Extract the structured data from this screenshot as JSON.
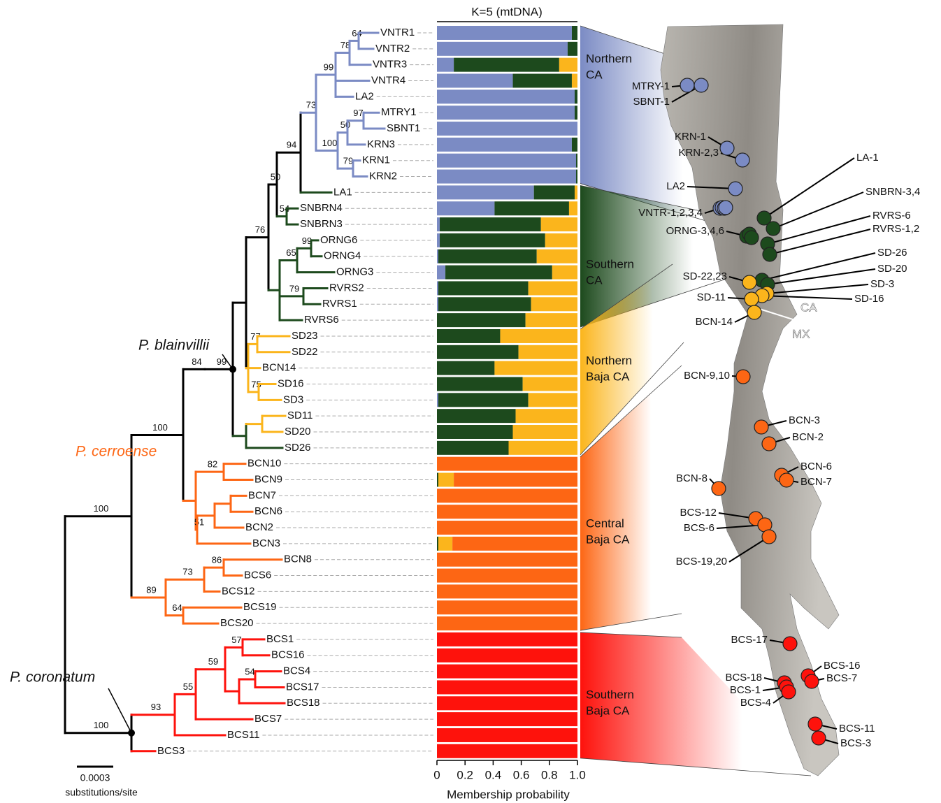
{
  "chart_data": {
    "type": "bar",
    "orientation": "horizontal",
    "stacked": true,
    "title": "K=5 (mtDNA)",
    "xlabel": "Membership probability",
    "categories": [
      "VNTR1",
      "VNTR2",
      "VNTR3",
      "VNTR4",
      "LA2",
      "MTRY1",
      "SBNT1",
      "KRN3",
      "KRN1",
      "KRN2",
      "LA1",
      "SNBRN4",
      "SNBRN3",
      "ORNG6",
      "ORNG4",
      "ORNG3",
      "RVRS2",
      "RVRS1",
      "RVRS6",
      "SD23",
      "SD22",
      "BCN14",
      "SD16",
      "SD3",
      "SD11",
      "SD20",
      "SD26",
      "BCN10",
      "BCN9",
      "BCN7",
      "BCN6",
      "BCN2",
      "BCN3",
      "BCN8",
      "BCS6",
      "BCS12",
      "BCS19",
      "BCS20",
      "BCS1",
      "BCS16",
      "BCS4",
      "BCS17",
      "BCS18",
      "BCS7",
      "BCS11",
      "BCS3"
    ],
    "series": [
      {
        "color": "#7b8bc4",
        "values": [
          0.96,
          0.93,
          0.12,
          0.54,
          0.98,
          0.98,
          1,
          0.96,
          0.99,
          0.99,
          0.69,
          0.41,
          0.02,
          0.02,
          0.01,
          0.06,
          0.01,
          0.01,
          0,
          0,
          0,
          0,
          0,
          0.01,
          0,
          0,
          0,
          0,
          0,
          0,
          0,
          0,
          0,
          0,
          0,
          0,
          0,
          0,
          0,
          0,
          0,
          0,
          0,
          0,
          0,
          0
        ]
      },
      {
        "color": "#1d4a1d",
        "values": [
          0.04,
          0.07,
          0.75,
          0.42,
          0.02,
          0.02,
          0,
          0.04,
          0.01,
          0.01,
          0.29,
          0.53,
          0.72,
          0.75,
          0.7,
          0.76,
          0.64,
          0.66,
          0.63,
          0.45,
          0.58,
          0.41,
          0.61,
          0.64,
          0.56,
          0.54,
          0.51,
          0,
          0.01,
          0,
          0,
          0,
          0.01,
          0,
          0,
          0,
          0,
          0,
          0,
          0,
          0,
          0,
          0,
          0,
          0,
          0
        ]
      },
      {
        "color": "#fbb51c",
        "values": [
          0,
          0,
          0.13,
          0.04,
          0,
          0,
          0,
          0,
          0,
          0,
          0.02,
          0.06,
          0.26,
          0.23,
          0.29,
          0.18,
          0.35,
          0.33,
          0.37,
          0.55,
          0.42,
          0.59,
          0.39,
          0.35,
          0.44,
          0.46,
          0.49,
          0,
          0.11,
          0,
          0,
          0,
          0.1,
          0,
          0,
          0,
          0,
          0,
          0,
          0,
          0,
          0,
          0,
          0,
          0,
          0
        ]
      },
      {
        "color": "#fd6614",
        "values": [
          0,
          0,
          0,
          0,
          0,
          0,
          0,
          0,
          0,
          0,
          0,
          0,
          0,
          0,
          0,
          0,
          0,
          0,
          0,
          0,
          0,
          0,
          0,
          0,
          0,
          0,
          0,
          1,
          0.88,
          1,
          1,
          1,
          0.89,
          1,
          1,
          1,
          1,
          1,
          0,
          0,
          0,
          0,
          0,
          0,
          0,
          0
        ]
      },
      {
        "color": "#fe120c",
        "values": [
          0,
          0,
          0,
          0,
          0,
          0,
          0,
          0,
          0,
          0,
          0,
          0,
          0,
          0,
          0,
          0,
          0,
          0,
          0,
          0,
          0,
          0,
          0,
          0,
          0,
          0,
          0,
          0,
          0,
          0,
          0,
          0,
          0,
          0,
          0,
          0,
          0,
          0,
          1,
          1,
          1,
          1,
          1,
          1,
          1,
          1
        ]
      }
    ],
    "xlim": [
      0,
      1
    ],
    "xticks": [
      0,
      0.2,
      0.4,
      0.6,
      0.8,
      {
        "value": 1,
        "label": "1.0"
      }
    ],
    "regions": [
      [
        "Northern",
        "CA"
      ],
      [
        "Southern",
        "CA"
      ],
      [
        "Northern",
        "Baja CA"
      ],
      [
        "Central",
        "Baja CA"
      ],
      [
        "Southern",
        "Baja CA"
      ]
    ]
  },
  "tree": {
    "support": [
      64,
      78,
      99,
      73,
      97,
      50,
      100,
      79,
      94,
      50,
      54,
      76,
      99,
      65,
      79,
      77,
      75,
      99,
      84,
      82,
      51,
      100,
      86,
      73,
      89,
      64,
      57,
      54,
      59,
      55,
      93,
      100,
      100
    ],
    "clade_labels": [
      "P. blainvillii",
      "P. cerroense",
      "P. coronatum"
    ],
    "scale": "0.0003",
    "scale_unit": "substitutions/site"
  },
  "map": {
    "sites": [
      "MTRY-1",
      "SBNT-1",
      "KRN-1",
      "KRN-2,3",
      "LA2",
      "VNTR-1,2,3,4",
      "ORNG-3,4,6",
      "LA-1",
      "SNBRN-3,4",
      "RVRS-6",
      "RVRS-1,2",
      "SD-26",
      "SD-20",
      "SD-3",
      "SD-16",
      "SD-22,23",
      "SD-11",
      "BCN-14",
      "BCN-9,10",
      "BCN-3",
      "BCN-2",
      "BCN-6",
      "BCN-7",
      "BCN-8",
      "BCS-12",
      "BCS-6",
      "BCS-19,20",
      "BCS-17",
      "BCS-16",
      "BCS-7",
      "BCS-18",
      "BCS-1",
      "BCS-4",
      "BCS-11",
      "BCS-3"
    ],
    "borders": [
      "CA",
      "MX"
    ]
  }
}
